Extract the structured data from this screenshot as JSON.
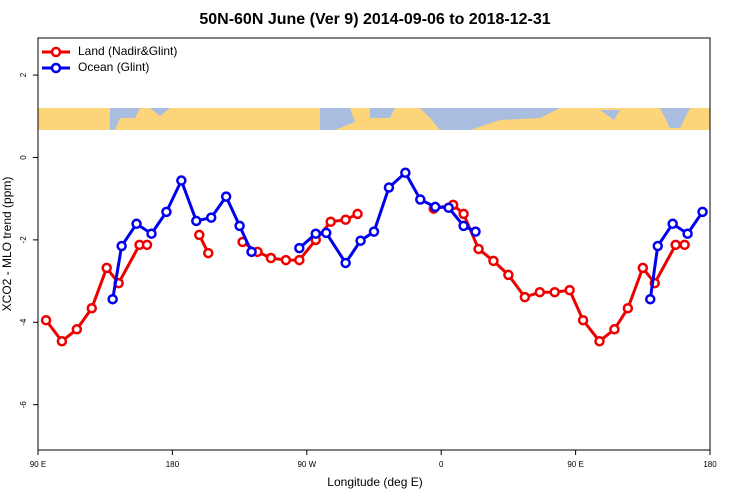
{
  "chart_data": {
    "type": "line",
    "title": "50N-60N June (Ver 9)   2014-09-06 to 2018-12-31",
    "xlabel": "Longitude (deg E)",
    "ylabel": "XCO2 - MLO trend (ppm)",
    "xlim": [
      90,
      540
    ],
    "xticks": [
      {
        "value": 90,
        "label": "90 E"
      },
      180,
      {
        "value": 270,
        "label": "90 W"
      },
      {
        "value": 360,
        "label": "0"
      },
      {
        "value": 450,
        "label": "90 E"
      },
      {
        "value": 540,
        "label": "180"
      }
    ],
    "ylim": [
      -7.1,
      2.9
    ],
    "yticks": [
      -6,
      -4,
      -2,
      0,
      2
    ],
    "legend": "top-left",
    "series": [
      {
        "name": "Land (Nadir&Glint)",
        "color": "#ee0000",
        "x": [
          95.4,
          106,
          116,
          126,
          136,
          144,
          158,
          163,
          null,
          198,
          204,
          null,
          227,
          237,
          246,
          256,
          265,
          276,
          286,
          296,
          304,
          null,
          355,
          368,
          375,
          385,
          395,
          405,
          416,
          426,
          436,
          446,
          455,
          466,
          476,
          485,
          495,
          503,
          517,
          523
        ],
        "values": [
          -3.95,
          -4.46,
          -4.17,
          -3.66,
          -2.68,
          -3.05,
          -2.12,
          -2.12,
          null,
          -1.88,
          -2.32,
          null,
          -2.05,
          -2.29,
          -2.44,
          -2.49,
          -2.49,
          -2.0,
          -1.56,
          -1.51,
          -1.37,
          null,
          -1.24,
          -1.15,
          -1.37,
          -2.22,
          -2.51,
          -2.85,
          -3.39,
          -3.27,
          -3.27,
          -3.22,
          -3.95,
          -4.46,
          -4.17,
          -3.66,
          -2.68,
          -3.05,
          -2.12,
          -2.12
        ]
      },
      {
        "name": "Ocean (Glint)",
        "color": "#0000ee",
        "x": [
          140,
          146,
          156,
          166,
          176,
          186,
          196,
          206,
          216,
          225,
          233,
          null,
          265,
          276,
          283,
          296,
          306,
          315,
          325,
          336,
          346,
          356,
          365,
          375,
          383,
          null,
          500,
          505,
          515,
          525,
          535
        ],
        "values": [
          -3.44,
          -2.15,
          -1.61,
          -1.85,
          -1.32,
          -0.56,
          -1.54,
          -1.46,
          -0.95,
          -1.66,
          -2.29,
          null,
          -2.2,
          -1.85,
          -1.83,
          -2.56,
          -2.02,
          -1.8,
          -0.73,
          -0.37,
          -1.02,
          -1.2,
          -1.22,
          -1.66,
          -1.8,
          null,
          -3.44,
          -2.15,
          -1.61,
          -1.85,
          -1.32
        ]
      }
    ]
  }
}
